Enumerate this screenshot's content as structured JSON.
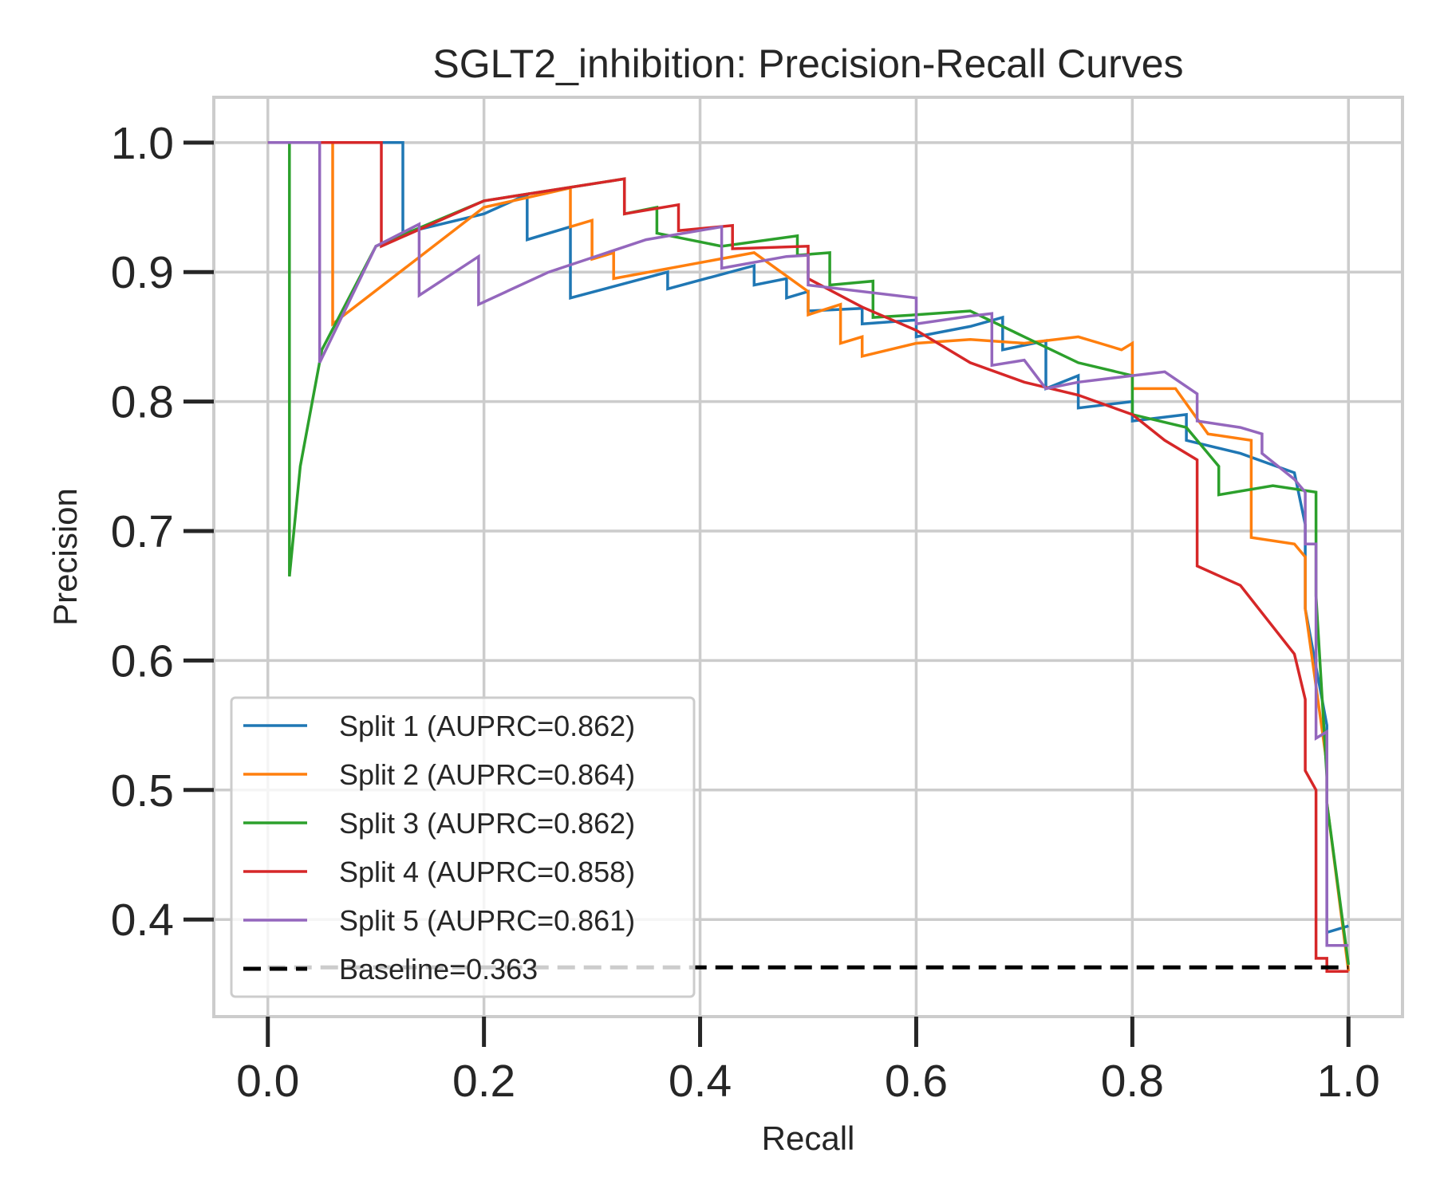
{
  "chart_data": {
    "type": "line",
    "title": "SGLT2_inhibition: Precision-Recall Curves",
    "xlabel": "Recall",
    "ylabel": "Precision",
    "xlim": [
      -0.05,
      1.05
    ],
    "ylim": [
      0.325,
      1.035
    ],
    "xticks": [
      0.0,
      0.2,
      0.4,
      0.6,
      0.8,
      1.0
    ],
    "xtick_labels": [
      "0.0",
      "0.2",
      "0.4",
      "0.6",
      "0.8",
      "1.0"
    ],
    "yticks": [
      0.4,
      0.5,
      0.6,
      0.7,
      0.8,
      0.9,
      1.0
    ],
    "ytick_labels": [
      "0.4",
      "0.5",
      "0.6",
      "0.7",
      "0.8",
      "0.9",
      "1.0"
    ],
    "grid": true,
    "legend_position": "lower-left",
    "series": [
      {
        "name": "Split 1 (AUPRC=0.862)",
        "color": "#1f77b4",
        "x": [
          0.0,
          0.125,
          0.125,
          0.2,
          0.24,
          0.24,
          0.28,
          0.28,
          0.37,
          0.37,
          0.45,
          0.45,
          0.48,
          0.48,
          0.5,
          0.5,
          0.55,
          0.55,
          0.6,
          0.6,
          0.65,
          0.68,
          0.68,
          0.72,
          0.72,
          0.75,
          0.75,
          0.8,
          0.8,
          0.85,
          0.85,
          0.9,
          0.95,
          0.96,
          0.96,
          0.98,
          0.98,
          1.0
        ],
        "y": [
          1.0,
          1.0,
          0.93,
          0.945,
          0.96,
          0.925,
          0.935,
          0.88,
          0.9,
          0.887,
          0.905,
          0.89,
          0.895,
          0.88,
          0.885,
          0.87,
          0.872,
          0.86,
          0.863,
          0.85,
          0.858,
          0.865,
          0.84,
          0.847,
          0.81,
          0.82,
          0.795,
          0.8,
          0.785,
          0.79,
          0.77,
          0.76,
          0.745,
          0.705,
          0.64,
          0.55,
          0.39,
          0.395
        ]
      },
      {
        "name": "Split 2 (AUPRC=0.864)",
        "color": "#ff7f0e",
        "x": [
          0.0,
          0.06,
          0.06,
          0.2,
          0.28,
          0.28,
          0.3,
          0.3,
          0.32,
          0.32,
          0.45,
          0.5,
          0.5,
          0.53,
          0.53,
          0.55,
          0.55,
          0.6,
          0.65,
          0.7,
          0.75,
          0.77,
          0.79,
          0.8,
          0.8,
          0.84,
          0.87,
          0.91,
          0.91,
          0.95,
          0.96,
          0.96,
          0.98,
          0.98,
          1.0
        ],
        "y": [
          1.0,
          1.0,
          0.86,
          0.95,
          0.965,
          0.935,
          0.94,
          0.91,
          0.915,
          0.895,
          0.915,
          0.885,
          0.867,
          0.875,
          0.845,
          0.85,
          0.835,
          0.845,
          0.848,
          0.845,
          0.85,
          0.845,
          0.84,
          0.845,
          0.81,
          0.81,
          0.775,
          0.77,
          0.695,
          0.69,
          0.68,
          0.64,
          0.52,
          0.49,
          0.36
        ]
      },
      {
        "name": "Split 3 (AUPRC=0.862)",
        "color": "#2ca02c",
        "x": [
          0.0,
          0.02,
          0.02,
          0.03,
          0.05,
          0.1,
          0.2,
          0.33,
          0.33,
          0.36,
          0.36,
          0.42,
          0.49,
          0.49,
          0.52,
          0.52,
          0.56,
          0.56,
          0.6,
          0.65,
          0.7,
          0.75,
          0.8,
          0.8,
          0.85,
          0.88,
          0.88,
          0.93,
          0.97,
          0.97,
          0.98,
          0.98,
          1.0
        ],
        "y": [
          1.0,
          1.0,
          0.665,
          0.75,
          0.84,
          0.92,
          0.955,
          0.972,
          0.945,
          0.95,
          0.93,
          0.92,
          0.928,
          0.913,
          0.915,
          0.89,
          0.893,
          0.865,
          0.867,
          0.87,
          0.85,
          0.83,
          0.82,
          0.79,
          0.78,
          0.75,
          0.728,
          0.735,
          0.73,
          0.65,
          0.51,
          0.49,
          0.365
        ]
      },
      {
        "name": "Split 4 (AUPRC=0.858)",
        "color": "#d62728",
        "x": [
          0.0,
          0.105,
          0.105,
          0.2,
          0.33,
          0.33,
          0.38,
          0.38,
          0.43,
          0.43,
          0.5,
          0.5,
          0.55,
          0.6,
          0.65,
          0.7,
          0.75,
          0.8,
          0.83,
          0.86,
          0.86,
          0.9,
          0.95,
          0.96,
          0.96,
          0.97,
          0.97,
          0.98,
          0.98,
          1.0
        ],
        "y": [
          1.0,
          1.0,
          0.92,
          0.955,
          0.972,
          0.945,
          0.952,
          0.932,
          0.936,
          0.918,
          0.92,
          0.895,
          0.873,
          0.855,
          0.83,
          0.815,
          0.805,
          0.79,
          0.77,
          0.755,
          0.673,
          0.658,
          0.605,
          0.57,
          0.515,
          0.5,
          0.37,
          0.37,
          0.36,
          0.36
        ]
      },
      {
        "name": "Split 5 (AUPRC=0.861)",
        "color": "#9467bd",
        "x": [
          0.0,
          0.048,
          0.048,
          0.1,
          0.14,
          0.14,
          0.195,
          0.195,
          0.26,
          0.35,
          0.42,
          0.42,
          0.48,
          0.5,
          0.5,
          0.6,
          0.6,
          0.65,
          0.67,
          0.67,
          0.7,
          0.72,
          0.75,
          0.8,
          0.83,
          0.86,
          0.86,
          0.9,
          0.92,
          0.92,
          0.95,
          0.96,
          0.96,
          0.97,
          0.97,
          0.98,
          0.98,
          1.0
        ],
        "y": [
          1.0,
          1.0,
          0.83,
          0.92,
          0.937,
          0.882,
          0.912,
          0.875,
          0.9,
          0.925,
          0.935,
          0.903,
          0.912,
          0.913,
          0.89,
          0.88,
          0.86,
          0.866,
          0.868,
          0.828,
          0.832,
          0.81,
          0.815,
          0.82,
          0.823,
          0.806,
          0.785,
          0.78,
          0.775,
          0.76,
          0.74,
          0.73,
          0.69,
          0.69,
          0.54,
          0.545,
          0.38,
          0.38
        ]
      }
    ],
    "baseline": {
      "name": "Baseline=0.363",
      "value": 0.363,
      "color": "#000000",
      "x": [
        0.0,
        1.0
      ]
    }
  }
}
